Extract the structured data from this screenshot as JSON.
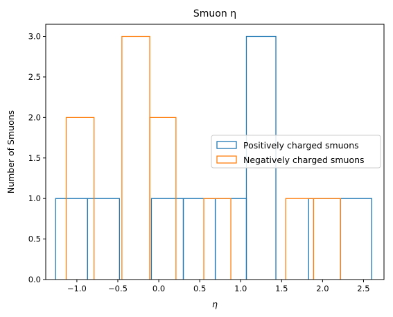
{
  "chart_data": {
    "type": "histogram-step",
    "title": "Smuon η",
    "xlabel": "η",
    "ylabel": "Number of Smuons",
    "xlim": [
      -1.38,
      2.75
    ],
    "ylim": [
      0,
      3.15
    ],
    "xticks": [
      -1.0,
      -0.5,
      0.0,
      0.5,
      1.0,
      1.5,
      2.0,
      2.5
    ],
    "xtick_labels": [
      "−1.0",
      "−0.5",
      "0.0",
      "0.5",
      "1.0",
      "1.5",
      "2.0",
      "2.5"
    ],
    "yticks": [
      0.0,
      0.5,
      1.0,
      1.5,
      2.0,
      2.5,
      3.0
    ],
    "ytick_labels": [
      "0.0",
      "0.5",
      "1.0",
      "1.5",
      "2.0",
      "2.5",
      "3.0"
    ],
    "grid": false,
    "legend_position": "center-right",
    "series": [
      {
        "name": "Positively charged smuons",
        "color": "#1f77b4",
        "bin_edges": [
          -1.26,
          -0.87,
          -0.48,
          -0.09,
          0.3,
          0.69,
          1.07,
          1.43,
          1.83,
          2.22,
          2.6
        ],
        "counts": [
          1,
          1,
          0,
          1,
          1,
          1,
          3,
          0,
          1,
          1
        ]
      },
      {
        "name": "Negatively charged smuons",
        "color": "#ff7f0e",
        "bin_edges": [
          -1.13,
          -0.79,
          -0.45,
          -0.11,
          0.21,
          0.55,
          0.88,
          1.22,
          1.55,
          1.89,
          2.22
        ],
        "counts": [
          2,
          0,
          3,
          2,
          0,
          1,
          0,
          0,
          1,
          1
        ]
      }
    ]
  }
}
